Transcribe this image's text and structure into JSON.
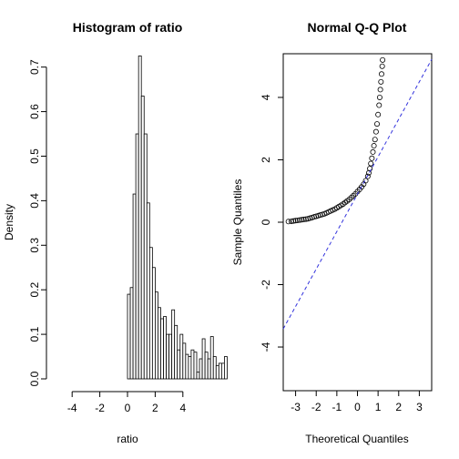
{
  "chart_data": [
    {
      "type": "bar",
      "subtype": "histogram",
      "title": "Histogram of ratio",
      "xlabel": "ratio",
      "ylabel": "Density",
      "xlim": [
        -5,
        5
      ],
      "ylim": [
        0,
        0.73
      ],
      "xticks": [
        -4,
        -2,
        0,
        2,
        4
      ],
      "yticks": [
        0.0,
        0.1,
        0.2,
        0.3,
        0.4,
        0.5,
        0.6,
        0.7
      ],
      "bin_width": 0.2,
      "bin_start": -5,
      "values": [
        0,
        0,
        0,
        0,
        0,
        0,
        0,
        0,
        0,
        0,
        0,
        0,
        0,
        0,
        0,
        0,
        0,
        0,
        0,
        0,
        0,
        0,
        0,
        0,
        0,
        0.19,
        0.205,
        0.415,
        0.55,
        0.725,
        0.635,
        0.55,
        0.395,
        0.295,
        0.25,
        0.195,
        0.16,
        0.135,
        0.14,
        0.1,
        0.1,
        0.155,
        0.12,
        0.065,
        0.1,
        0.08,
        0.055,
        0.05,
        0.065,
        0.06,
        0.015,
        0.045,
        0.09,
        0.06,
        0.045,
        0.095,
        0.05,
        0.03,
        0.035,
        0.035,
        0.05
      ]
    },
    {
      "type": "scatter",
      "subtype": "qq-plot",
      "title": "Normal Q-Q Plot",
      "xlabel": "Theoretical Quantiles",
      "ylabel": "Sample Quantiles",
      "xlim": [
        -3.6,
        3.6
      ],
      "ylim": [
        -5.4,
        5.4
      ],
      "xticks": [
        -3,
        -2,
        -1,
        0,
        1,
        2,
        3
      ],
      "yticks": [
        -4,
        -2,
        0,
        2,
        4
      ],
      "reference_line": {
        "intercept": 0.9,
        "slope": 1.2,
        "color": "#3333dd"
      },
      "points": [
        [
          -3.35,
          0.02
        ],
        [
          -3.2,
          0.03
        ],
        [
          -3.1,
          0.04
        ],
        [
          -3.0,
          0.05
        ],
        [
          -2.9,
          0.06
        ],
        [
          -2.8,
          0.07
        ],
        [
          -2.7,
          0.08
        ],
        [
          -2.6,
          0.09
        ],
        [
          -2.5,
          0.1
        ],
        [
          -2.4,
          0.11
        ],
        [
          -2.3,
          0.13
        ],
        [
          -2.2,
          0.15
        ],
        [
          -2.1,
          0.17
        ],
        [
          -2.0,
          0.19
        ],
        [
          -1.9,
          0.21
        ],
        [
          -1.8,
          0.23
        ],
        [
          -1.7,
          0.25
        ],
        [
          -1.6,
          0.27
        ],
        [
          -1.5,
          0.3
        ],
        [
          -1.4,
          0.33
        ],
        [
          -1.3,
          0.36
        ],
        [
          -1.2,
          0.39
        ],
        [
          -1.1,
          0.42
        ],
        [
          -1.0,
          0.46
        ],
        [
          -0.9,
          0.5
        ],
        [
          -0.8,
          0.54
        ],
        [
          -0.7,
          0.58
        ],
        [
          -0.6,
          0.63
        ],
        [
          -0.5,
          0.68
        ],
        [
          -0.4,
          0.73
        ],
        [
          -0.3,
          0.79
        ],
        [
          -0.2,
          0.85
        ],
        [
          -0.1,
          0.91
        ],
        [
          0.0,
          0.98
        ],
        [
          0.1,
          1.05
        ],
        [
          0.2,
          1.13
        ],
        [
          0.3,
          1.22
        ],
        [
          0.4,
          1.33
        ],
        [
          0.5,
          1.47
        ],
        [
          0.55,
          1.58
        ],
        [
          0.6,
          1.72
        ],
        [
          0.65,
          1.88
        ],
        [
          0.7,
          2.05
        ],
        [
          0.75,
          2.25
        ],
        [
          0.8,
          2.45
        ],
        [
          0.85,
          2.65
        ],
        [
          0.9,
          2.9
        ],
        [
          0.95,
          3.15
        ],
        [
          1.0,
          3.45
        ],
        [
          1.05,
          3.75
        ],
        [
          1.08,
          4.0
        ],
        [
          1.11,
          4.25
        ],
        [
          1.14,
          4.5
        ],
        [
          1.17,
          4.75
        ],
        [
          1.2,
          5.0
        ],
        [
          1.22,
          5.2
        ]
      ]
    }
  ]
}
